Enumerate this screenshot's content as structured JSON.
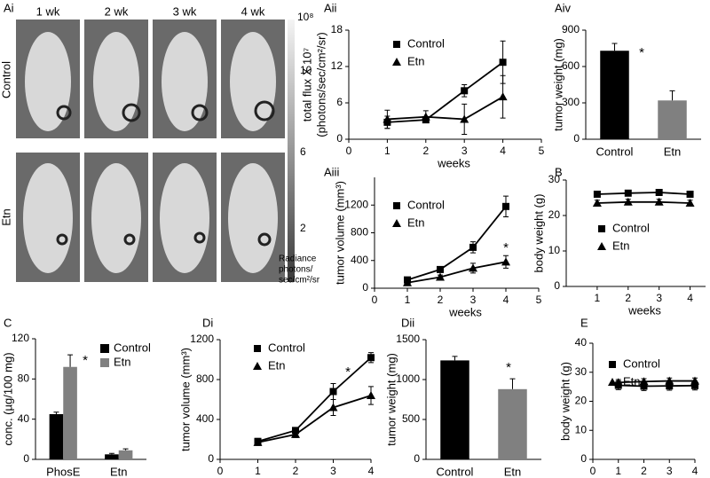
{
  "image_panel": {
    "panel": "Ai",
    "weeks": [
      "1 wk",
      "2 wk",
      "3 wk",
      "4 wk"
    ],
    "rows": [
      "Control",
      "Etn"
    ],
    "scale_labels": [
      "10⁸",
      "10",
      "6",
      "2"
    ],
    "scale_title": [
      "Radiance",
      "photons/",
      "sec/cm²/sr"
    ]
  },
  "chart_data": [
    {
      "type": "line",
      "panel": "Aii",
      "ylabel": [
        "total flux X 10⁷",
        "(photons/sec/cm²/sr)"
      ],
      "xlabel": "weeks",
      "x": [
        1,
        2,
        3,
        4
      ],
      "xlim": [
        0,
        5
      ],
      "xticks": [
        0,
        1,
        2,
        3,
        4,
        5
      ],
      "ylim": [
        0,
        18
      ],
      "yticks": [
        0,
        6,
        12,
        18
      ],
      "series": [
        {
          "name": "Control",
          "color": "#000000",
          "marker": "square",
          "values": [
            2.8,
            3.2,
            8,
            12.7
          ],
          "errors": [
            1,
            0.5,
            1,
            3.5
          ]
        },
        {
          "name": "Etn",
          "color": "#000000",
          "marker": "triangle",
          "values": [
            3.3,
            3.7,
            3.3,
            7
          ],
          "errors": [
            1.5,
            1,
            2.5,
            3.5
          ]
        }
      ]
    },
    {
      "type": "bar",
      "panel": "Aiv",
      "ylabel": "tumor weight (mg)",
      "categories": [
        "Control",
        "Etn"
      ],
      "values": [
        730,
        320
      ],
      "errors": [
        60,
        80
      ],
      "colors": [
        "#000000",
        "#808080"
      ],
      "ylim": [
        0,
        900
      ],
      "yticks": [
        0,
        300,
        600,
        900
      ],
      "annotation": "*"
    },
    {
      "type": "line",
      "panel": "Aiii",
      "ylabel": "tumor volume (mm³)",
      "xlabel": "weeks",
      "x": [
        1,
        2,
        3,
        4
      ],
      "xlim": [
        0,
        5
      ],
      "xticks": [
        0,
        1,
        2,
        3,
        4,
        5
      ],
      "ylim": [
        0,
        1600
      ],
      "yticks": [
        0,
        400,
        800,
        1200
      ],
      "annotation": "*",
      "series": [
        {
          "name": "Control",
          "color": "#000000",
          "marker": "square",
          "values": [
            120,
            270,
            590,
            1180
          ],
          "errors": [
            40,
            30,
            80,
            150
          ]
        },
        {
          "name": "Etn",
          "color": "#000000",
          "marker": "triangle",
          "values": [
            80,
            160,
            290,
            380
          ],
          "errors": [
            30,
            30,
            70,
            90
          ]
        }
      ]
    },
    {
      "type": "line",
      "panel": "B",
      "ylabel": "body weight (g)",
      "xlabel": "weeks",
      "x": [
        1,
        2,
        3,
        4
      ],
      "xlim": [
        0,
        4.5
      ],
      "xticks": [
        1,
        2,
        3,
        4
      ],
      "ylim": [
        0,
        30
      ],
      "yticks": [
        0,
        10,
        20,
        30
      ],
      "series": [
        {
          "name": "Control",
          "color": "#000000",
          "marker": "square",
          "values": [
            26,
            26.3,
            26.5,
            26
          ],
          "errors": [
            0.5,
            0.5,
            0.5,
            0.5
          ]
        },
        {
          "name": "Etn",
          "color": "#000000",
          "marker": "triangle",
          "values": [
            23.5,
            23.8,
            23.8,
            23.5
          ],
          "errors": [
            0.8,
            0.8,
            0.8,
            0.8
          ]
        }
      ]
    },
    {
      "type": "groupedbar",
      "panel": "C",
      "ylabel": "conc. (µg/100 mg)",
      "categories": [
        "PhosE",
        "Etn"
      ],
      "ylim": [
        0,
        120
      ],
      "yticks": [
        0,
        40,
        80,
        120
      ],
      "annotation": "*",
      "series": [
        {
          "name": "Control",
          "color": "#000000",
          "values": [
            45,
            5
          ],
          "errors": [
            2,
            1
          ]
        },
        {
          "name": "Etn",
          "color": "#808080",
          "values": [
            92,
            9
          ],
          "errors": [
            12,
            1.5
          ]
        }
      ]
    },
    {
      "type": "line",
      "panel": "Di",
      "ylabel": "tumor volume (mm³)",
      "xlabel": "weeks",
      "x": [
        1,
        2,
        3,
        4
      ],
      "xlim": [
        0,
        4
      ],
      "xticks": [
        0,
        1,
        2,
        3,
        4
      ],
      "ylim": [
        0,
        1200
      ],
      "yticks": [
        0,
        400,
        800,
        1200
      ],
      "annotation": "*",
      "series": [
        {
          "name": "Control",
          "color": "#000000",
          "marker": "square",
          "values": [
            180,
            290,
            680,
            1020
          ],
          "errors": [
            30,
            30,
            80,
            50
          ]
        },
        {
          "name": "Etn",
          "color": "#000000",
          "marker": "triangle",
          "values": [
            170,
            250,
            520,
            640
          ],
          "errors": [
            30,
            30,
            80,
            90
          ]
        }
      ]
    },
    {
      "type": "bar",
      "panel": "Dii",
      "ylabel": "tumor weight (mg)",
      "categories": [
        "Control",
        "Etn"
      ],
      "values": [
        1240,
        880
      ],
      "errors": [
        50,
        130
      ],
      "colors": [
        "#000000",
        "#808080"
      ],
      "ylim": [
        0,
        1500
      ],
      "yticks": [
        0,
        500,
        1000,
        1500
      ],
      "annotation": "*"
    },
    {
      "type": "line",
      "panel": "E",
      "ylabel": "body weight (g)",
      "xlabel": "weeks",
      "x": [
        1,
        2,
        3,
        4
      ],
      "xlim": [
        0,
        4
      ],
      "xticks": [
        0,
        1,
        2,
        3,
        4
      ],
      "ylim": [
        0,
        40
      ],
      "yticks": [
        0,
        10,
        20,
        30,
        40
      ],
      "series": [
        {
          "name": "Control",
          "color": "#000000",
          "marker": "square",
          "values": [
            25.5,
            25.2,
            25.3,
            25.4
          ],
          "errors": [
            1.5,
            1.5,
            1.5,
            1.5
          ]
        },
        {
          "name": "Etn",
          "color": "#000000",
          "marker": "triangle",
          "values": [
            26.5,
            26.8,
            27,
            27
          ],
          "errors": [
            1,
            1,
            1,
            1
          ]
        }
      ]
    }
  ]
}
